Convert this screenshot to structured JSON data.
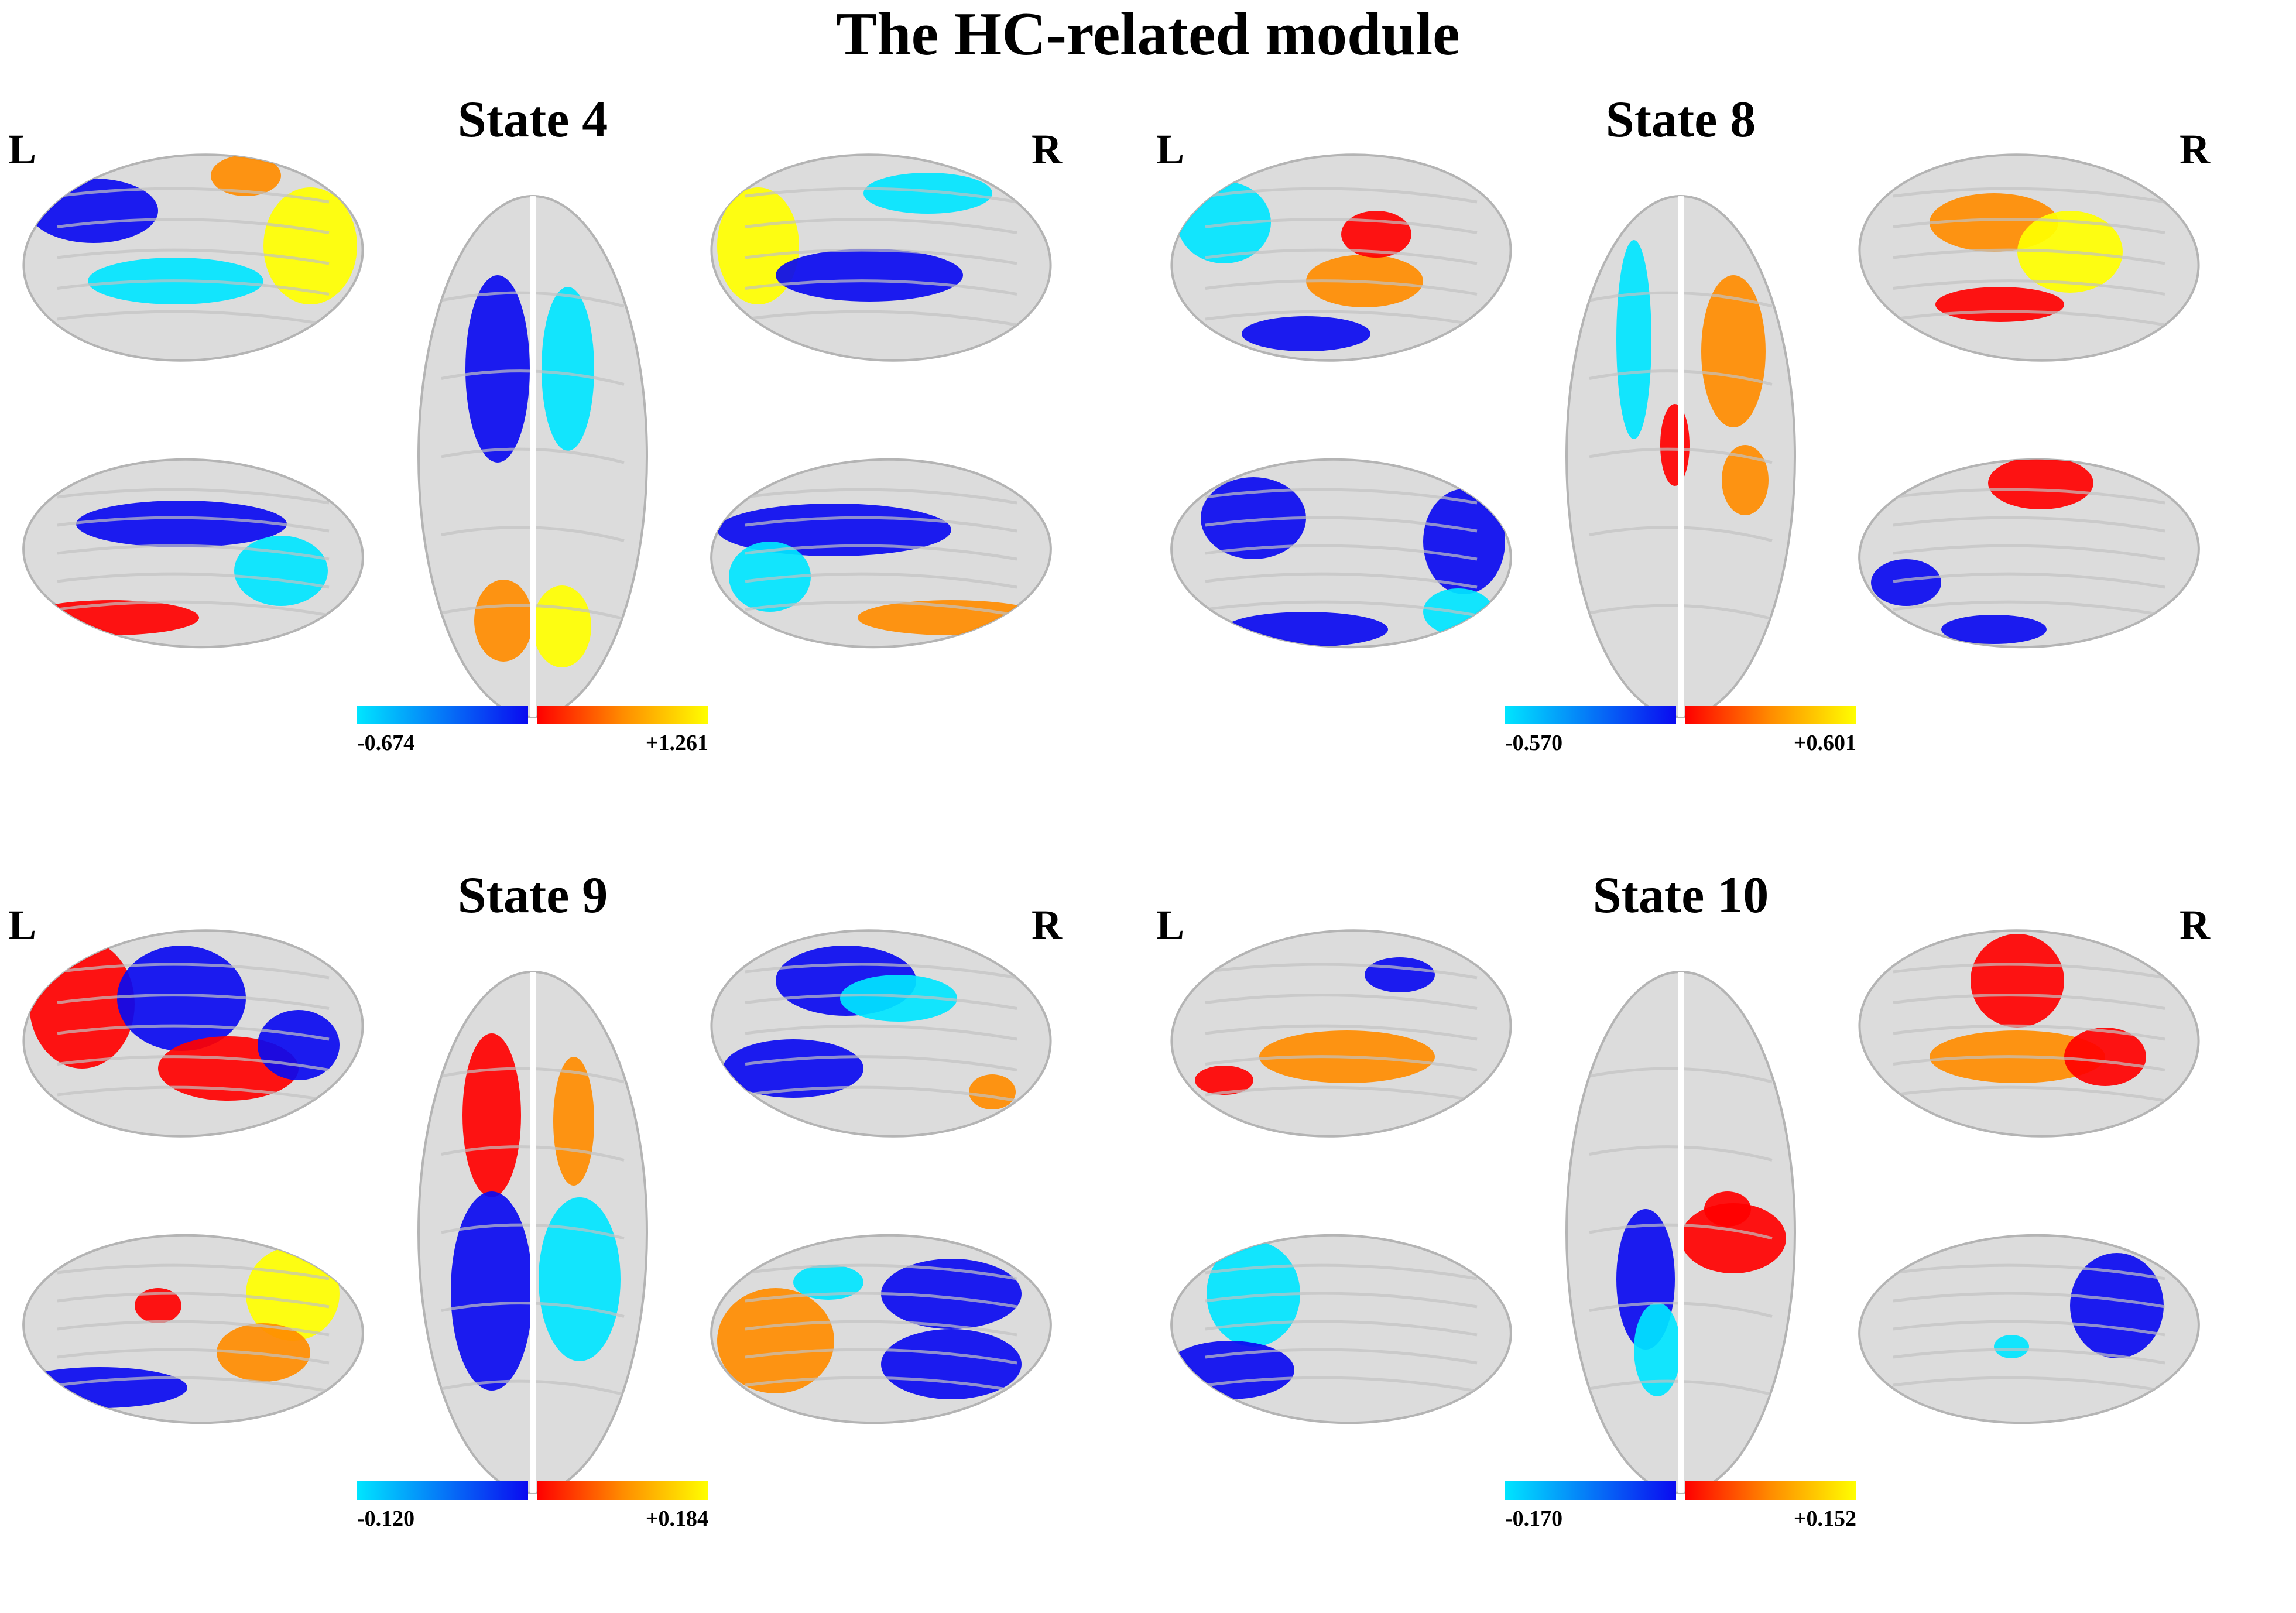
{
  "title": "The HC-related module",
  "colors": {
    "cortex": "#dcdcdc",
    "cortex_edge": "#b4b4b4",
    "negative_low": "#00e5ff",
    "negative_high": "#0a0af0",
    "positive_low": "#ff0000",
    "positive_mid": "#ff8c00",
    "positive_high": "#ffff00"
  },
  "panels": [
    {
      "state": "State 4",
      "left_label": "L",
      "right_label": "R",
      "scale_min": "-0.674",
      "scale_max": "+1.261"
    },
    {
      "state": "State 8",
      "left_label": "L",
      "right_label": "R",
      "scale_min": "-0.570",
      "scale_max": "+0.601"
    },
    {
      "state": "State 9",
      "left_label": "L",
      "right_label": "R",
      "scale_min": "-0.120",
      "scale_max": "+0.184"
    },
    {
      "state": "State 10",
      "left_label": "L",
      "right_label": "R",
      "scale_min": "-0.170",
      "scale_max": "+0.152"
    }
  ]
}
